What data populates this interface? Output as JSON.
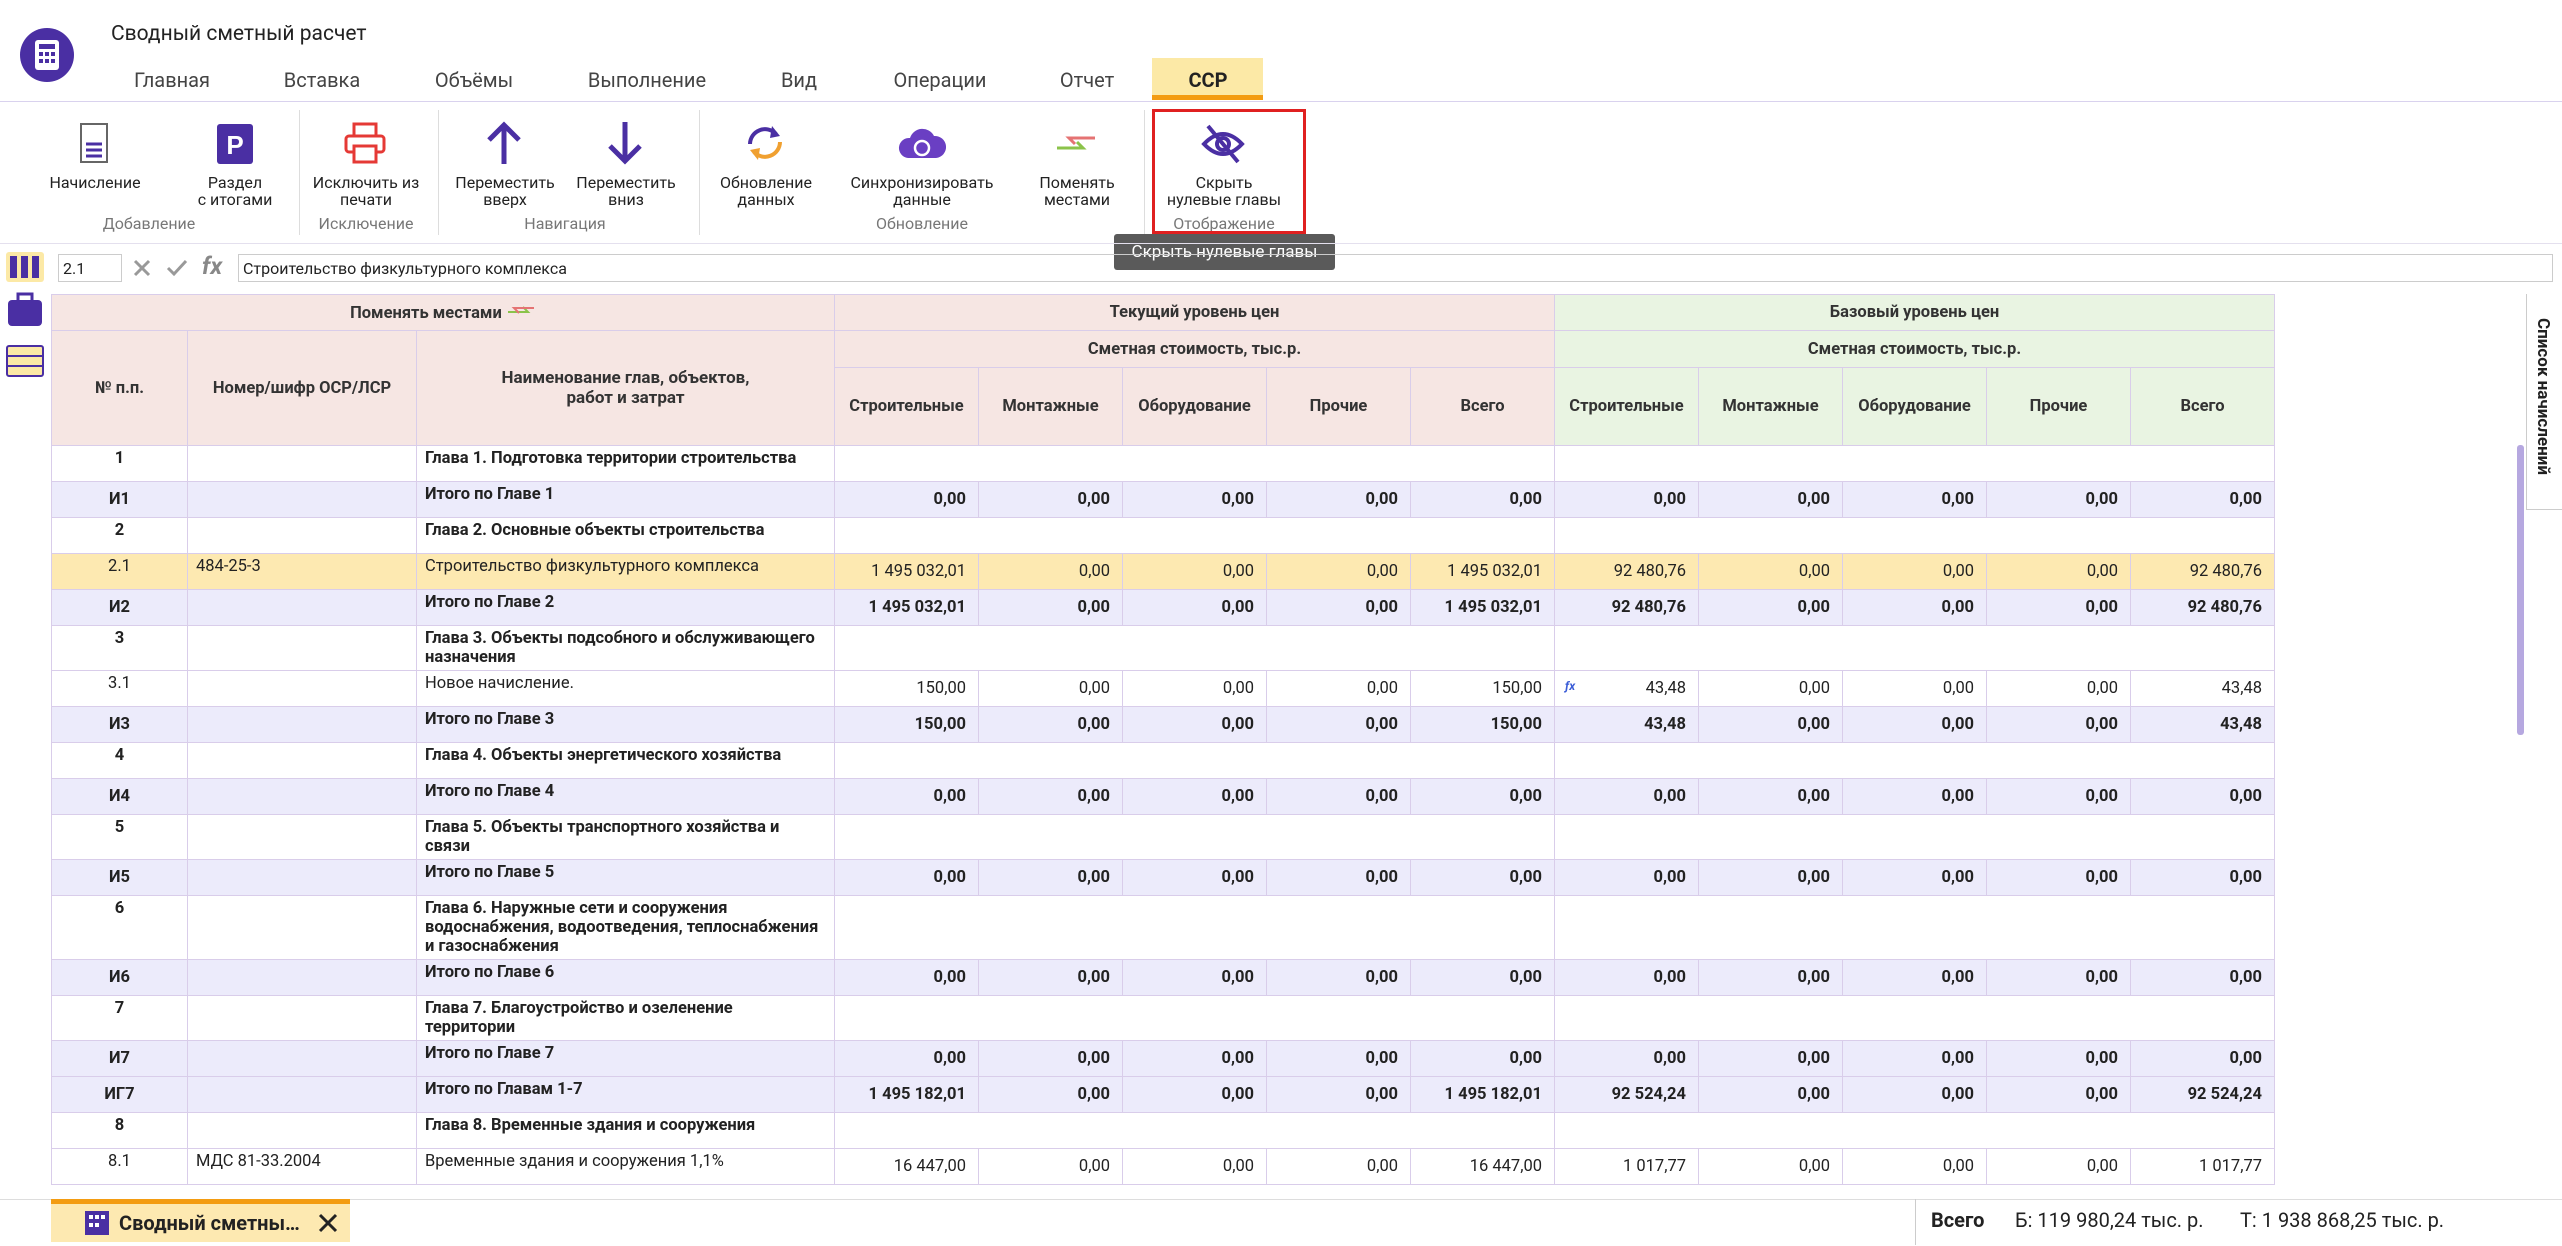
{
  "header": {
    "title": "Сводный сметный расчет"
  },
  "menu": {
    "tabs": [
      "Главная",
      "Вставка",
      "Объёмы",
      "Выполнение",
      "Вид",
      "Операции",
      "Отчет",
      "ССР"
    ]
  },
  "ribbon": {
    "groups": [
      {
        "label": "Добавление",
        "buttons": [
          {
            "label": "Начисление"
          },
          {
            "label": "Раздел\nс итогами"
          }
        ]
      },
      {
        "label": "Исключение",
        "buttons": [
          {
            "label": "Исключить из\nпечати"
          }
        ]
      },
      {
        "label": "Навигация",
        "buttons": [
          {
            "label": "Переместить\nвверх"
          },
          {
            "label": "Переместить\nвниз"
          }
        ]
      },
      {
        "label": "Обновление",
        "buttons": [
          {
            "label": "Обновление\nданных"
          },
          {
            "label": "Синхронизировать\nданные"
          },
          {
            "label": "Поменять\nместами"
          }
        ]
      },
      {
        "label": "Отображение",
        "buttons": [
          {
            "label": "Скрыть\nнулевые главы"
          }
        ]
      }
    ]
  },
  "tooltip": "Скрыть нулевые главы",
  "formula_bar": {
    "cell": "2.1",
    "fx_label": "fx",
    "text": "Строительство физкультурного комплекса"
  },
  "side_panel": {
    "title": "Список начислений"
  },
  "table": {
    "swap": "Поменять местами",
    "current": "Текущий уровень цен",
    "base": "Базовый уровень цен",
    "current_sub": "Сметная стоимость, тыс.р.",
    "base_sub": "Сметная стоимость, тыс.р.",
    "columns": [
      "№ п.п.",
      "Номер/шифр ОСР/ЛСР",
      "Наименование глав, объектов,\nработ и затрат"
    ],
    "current_columns": [
      "Строительные",
      "Монтажные",
      "Оборудование",
      "Прочие",
      "Всего"
    ],
    "base_columns": [
      "Строительные",
      "Монтажные",
      "Оборудование",
      "Прочие",
      "Всего"
    ],
    "rows": [
      {
        "num": "1",
        "code": "",
        "name": "Глава 1. Подготовка территории строительства"
      },
      {
        "num": "И1",
        "code": "",
        "name": "Итого по Главе 1",
        "values": [
          "0,00",
          "0,00",
          "0,00",
          "0,00",
          "0,00",
          "0,00",
          "0,00",
          "0,00",
          "0,00",
          "0,00"
        ]
      },
      {
        "num": "2",
        "code": "",
        "name": "Глава 2. Основные объекты строительства"
      },
      {
        "num": "2.1",
        "code": "484-25-3",
        "name": "Строительство физкультурного комплекса",
        "values": [
          "1 495 032,01",
          "0,00",
          "0,00",
          "0,00",
          "1 495 032,01",
          "92 480,76",
          "0,00",
          "0,00",
          "0,00",
          "92 480,76"
        ]
      },
      {
        "num": "И2",
        "code": "",
        "name": "Итого по Главе 2",
        "values": [
          "1 495 032,01",
          "0,00",
          "0,00",
          "0,00",
          "1 495 032,01",
          "92 480,76",
          "0,00",
          "0,00",
          "0,00",
          "92 480,76"
        ]
      },
      {
        "num": "3",
        "code": "",
        "name": "Глава 3. Объекты подсобного и обслуживающего назначения"
      },
      {
        "num": "3.1",
        "code": "",
        "name": "Новое начисление.",
        "values": [
          "150,00",
          "0,00",
          "0,00",
          "0,00",
          "150,00",
          "43,48",
          "0,00",
          "0,00",
          "0,00",
          "43,48"
        ]
      },
      {
        "num": "И3",
        "code": "",
        "name": "Итого по Главе 3",
        "values": [
          "150,00",
          "0,00",
          "0,00",
          "0,00",
          "150,00",
          "43,48",
          "0,00",
          "0,00",
          "0,00",
          "43,48"
        ]
      },
      {
        "num": "4",
        "code": "",
        "name": "Глава 4. Объекты энергетического хозяйства"
      },
      {
        "num": "И4",
        "code": "",
        "name": "Итого по Главе 4",
        "values": [
          "0,00",
          "0,00",
          "0,00",
          "0,00",
          "0,00",
          "0,00",
          "0,00",
          "0,00",
          "0,00",
          "0,00"
        ]
      },
      {
        "num": "5",
        "code": "",
        "name": "Глава 5. Объекты транспортного хозяйства и связи"
      },
      {
        "num": "И5",
        "code": "",
        "name": "Итого по Главе 5",
        "values": [
          "0,00",
          "0,00",
          "0,00",
          "0,00",
          "0,00",
          "0,00",
          "0,00",
          "0,00",
          "0,00",
          "0,00"
        ]
      },
      {
        "num": "6",
        "code": "",
        "name": "Глава 6. Наружные сети и сооружения водоснабжения, водоотведения, теплоснабжения и газоснабжения"
      },
      {
        "num": "И6",
        "code": "",
        "name": "Итого по Главе 6",
        "values": [
          "0,00",
          "0,00",
          "0,00",
          "0,00",
          "0,00",
          "0,00",
          "0,00",
          "0,00",
          "0,00",
          "0,00"
        ]
      },
      {
        "num": "7",
        "code": "",
        "name": "Глава 7. Благоустройство и озеленение территории"
      },
      {
        "num": "И7",
        "code": "",
        "name": "Итого по Главе 7",
        "values": [
          "0,00",
          "0,00",
          "0,00",
          "0,00",
          "0,00",
          "0,00",
          "0,00",
          "0,00",
          "0,00",
          "0,00"
        ]
      },
      {
        "num": "ИГ7",
        "code": "",
        "name": "Итого по Главам 1-7",
        "values": [
          "1 495 182,01",
          "0,00",
          "0,00",
          "0,00",
          "1 495 182,01",
          "92 524,24",
          "0,00",
          "0,00",
          "0,00",
          "92 524,24"
        ]
      },
      {
        "num": "8",
        "code": "",
        "name": "Глава 8. Временные здания и сооружения"
      },
      {
        "num": "8.1",
        "code": "МДС 81-33.2004",
        "name": "Временные здания и сооружения 1,1%",
        "values": [
          "16 447,00",
          "0,00",
          "0,00",
          "0,00",
          "16 447,00",
          "1 017,77",
          "0,00",
          "0,00",
          "0,00",
          "1 017,77"
        ]
      }
    ]
  },
  "bottom_tab": {
    "label": "Сводный сметный расчет"
  },
  "status": {
    "label": "Всего",
    "base": "Б: 119 980,24 тыс. р.",
    "current": "Т: 1 938 868,25 тыс. р."
  }
}
